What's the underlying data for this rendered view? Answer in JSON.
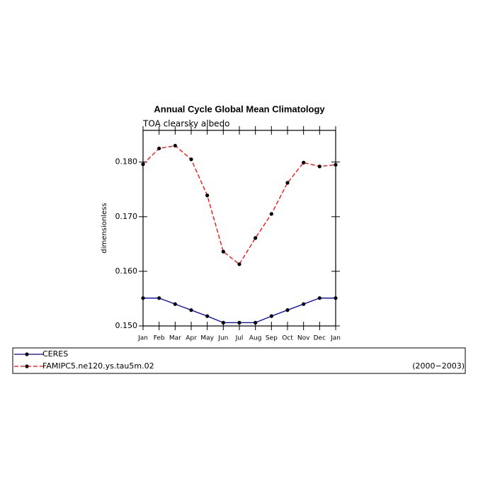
{
  "chart_data": {
    "type": "line",
    "title": "Annual Cycle Global Mean Climatology",
    "subtitle": "TOA clearsky albedo",
    "y_label": "dimensionless",
    "categories": [
      "Jan",
      "Feb",
      "Mar",
      "Apr",
      "May",
      "Jun",
      "Jul",
      "Aug",
      "Sep",
      "Oct",
      "Nov",
      "Dec",
      "Jan"
    ],
    "series": [
      {
        "name": "CERES",
        "color": "#0000cc",
        "dash": false,
        "values": [
          0.1551,
          0.1551,
          0.154,
          0.1529,
          0.1518,
          0.1506,
          0.1506,
          0.1506,
          0.1518,
          0.1529,
          0.154,
          0.1551,
          0.1551
        ]
      },
      {
        "name": "FAMIPC5.ne120.ys.tau5m.02",
        "color": "#ff0000",
        "dash": true,
        "values": [
          0.1796,
          0.1825,
          0.183,
          0.1805,
          0.1739,
          0.1636,
          0.1613,
          0.1661,
          0.1705,
          0.1762,
          0.1799,
          0.1792,
          0.1795
        ]
      }
    ],
    "legend_note": "(2000−2003)",
    "ylim": [
      0.15,
      0.1858
    ],
    "yticks": [
      {
        "value": 0.15,
        "label": "0.150"
      },
      {
        "value": 0.16,
        "label": "0.160"
      },
      {
        "value": 0.17,
        "label": "0.170"
      },
      {
        "value": 0.18,
        "label": "0.180"
      }
    ]
  }
}
